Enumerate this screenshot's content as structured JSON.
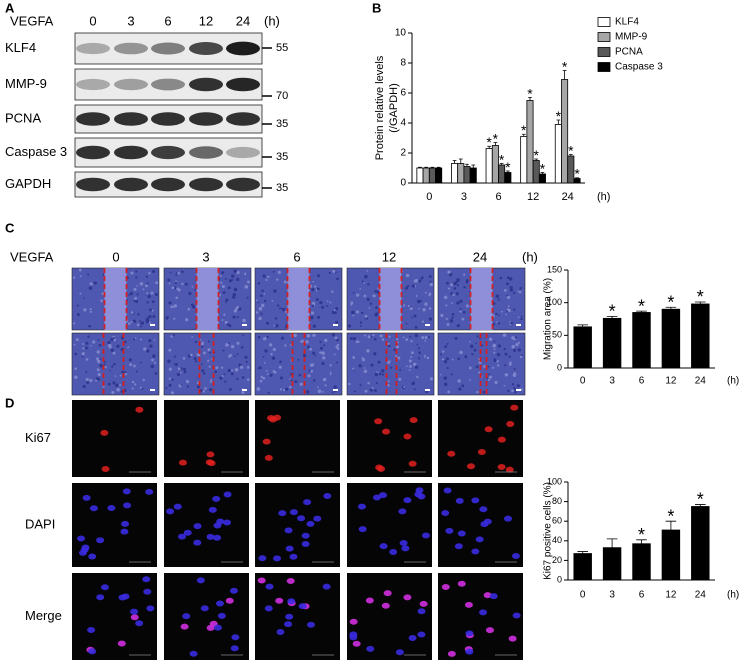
{
  "panel_a": {
    "label": "A",
    "treatment": "VEGFA",
    "lanes": [
      "0",
      "3",
      "6",
      "12",
      "24"
    ],
    "unit": "(h)",
    "rows": [
      {
        "protein": "KLF4",
        "mw": 55
      },
      {
        "protein": "MMP-9",
        "mw": 70
      },
      {
        "protein": "PCNA",
        "mw": 35
      },
      {
        "protein": "Caspase 3",
        "mw": 35
      },
      {
        "protein": "GAPDH",
        "mw": 35
      }
    ]
  },
  "panel_c": {
    "label": "C",
    "treatment": "VEGFA",
    "lanes": [
      "0",
      "3",
      "6",
      "12",
      "24"
    ],
    "unit": "(h)"
  },
  "panel_d": {
    "label": "D",
    "rows": [
      "Ki67",
      "DAPI",
      "Merge"
    ]
  },
  "chart_data": [
    {
      "type": "bar",
      "panel_label": "B",
      "ylabel": [
        "Protein relative levels",
        "(/GAPDH)"
      ],
      "xlabel": "(h)",
      "categories": [
        "0",
        "3",
        "6",
        "12",
        "24"
      ],
      "ylim": [
        0,
        10
      ],
      "yticks": [
        0,
        2,
        4,
        6,
        8,
        10
      ],
      "series": [
        {
          "name": "KLF4",
          "color": "#ffffff",
          "values": [
            1,
            1.3,
            2.3,
            3.1,
            3.9
          ],
          "errors": [
            0.05,
            0.2,
            0.15,
            0.15,
            0.3
          ],
          "significance": [
            null,
            null,
            "*",
            "*",
            "*"
          ]
        },
        {
          "name": "MMP-9",
          "color": "#a6a6a6",
          "values": [
            1,
            1.3,
            2.5,
            5.5,
            6.9
          ],
          "errors": [
            0.05,
            0.3,
            0.2,
            0.2,
            0.6
          ],
          "significance": [
            null,
            null,
            "*",
            "*",
            "*"
          ]
        },
        {
          "name": "PCNA",
          "color": "#595959",
          "values": [
            1,
            1.1,
            1.2,
            1.5,
            1.8
          ],
          "errors": [
            0.05,
            0.15,
            0.1,
            0.1,
            0.1
          ],
          "significance": [
            null,
            null,
            "*",
            "*",
            "*"
          ]
        },
        {
          "name": "Caspase 3",
          "color": "#000000",
          "values": [
            1,
            1.0,
            0.7,
            0.6,
            0.3
          ],
          "errors": [
            0.05,
            0.2,
            0.1,
            0.1,
            0.05
          ],
          "significance": [
            null,
            null,
            "*",
            "*",
            "*"
          ]
        }
      ]
    },
    {
      "type": "bar",
      "ylabel": [
        "Migration area (%)"
      ],
      "xlabel": "(h)",
      "color": "#000000",
      "categories": [
        "0",
        "3",
        "6",
        "12",
        "24"
      ],
      "ylim": [
        0,
        150
      ],
      "yticks": [
        0,
        50,
        100,
        150
      ],
      "values": [
        63,
        76,
        85,
        90,
        98
      ],
      "errors": [
        3,
        3,
        2,
        3,
        3
      ],
      "significance": [
        null,
        "*",
        "*",
        "*",
        "*"
      ]
    },
    {
      "type": "bar",
      "ylabel": [
        "Ki67 positive cells (%)"
      ],
      "xlabel": "(h)",
      "color": "#000000",
      "categories": [
        "0",
        "3",
        "6",
        "12",
        "24"
      ],
      "ylim": [
        0,
        100
      ],
      "yticks": [
        0,
        20,
        40,
        60,
        80,
        100
      ],
      "values": [
        27,
        33,
        37,
        51,
        75
      ],
      "errors": [
        2,
        9,
        4,
        9,
        2
      ],
      "significance": [
        null,
        null,
        "*",
        "*",
        "*"
      ]
    }
  ]
}
